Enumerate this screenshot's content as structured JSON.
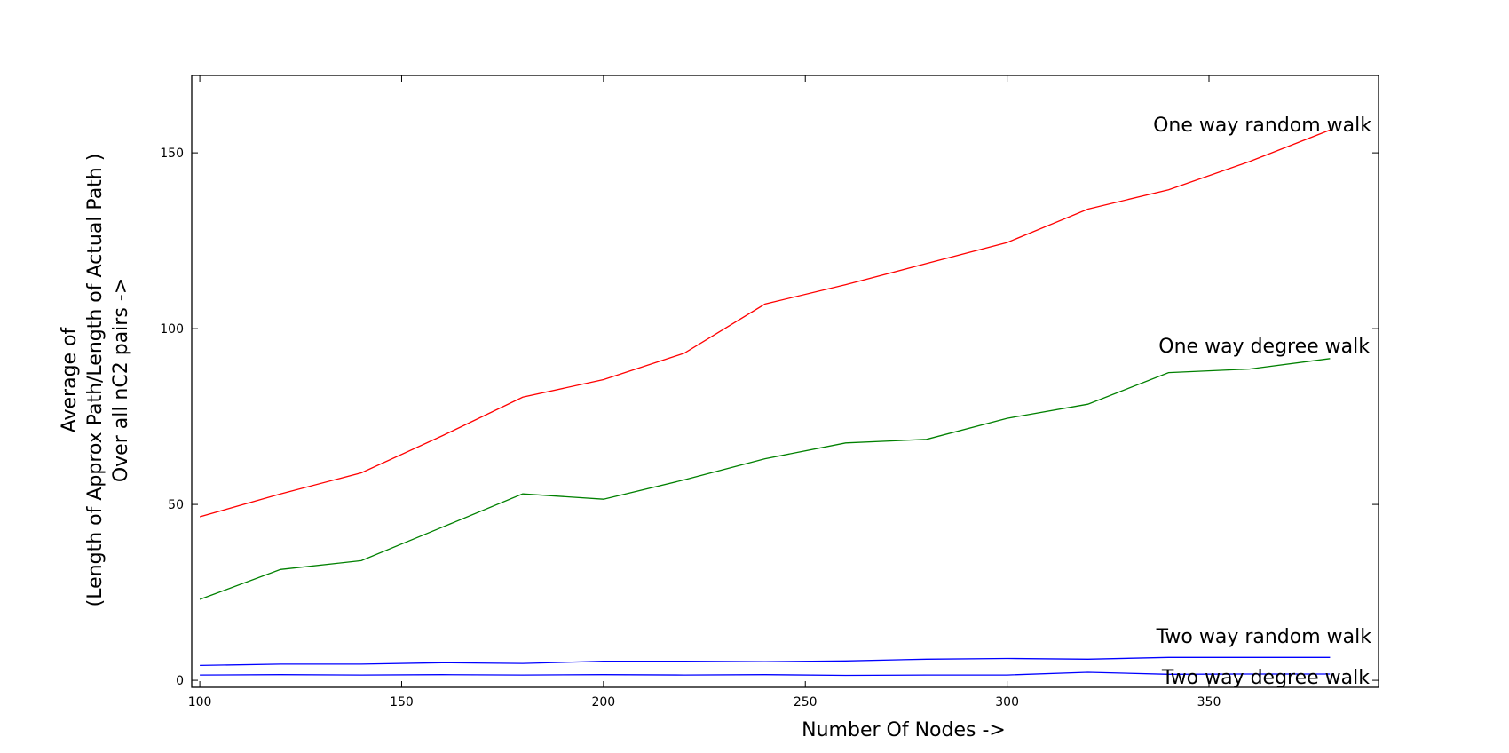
{
  "chart_data": {
    "type": "line",
    "title": "",
    "xlabel": "Number Of Nodes ->",
    "ylabel_lines": [
      "Average of",
      "(Length of Approx Path/Length of Actual Path )",
      "Over all nC2 pairs ->"
    ],
    "xlim": [
      98,
      392
    ],
    "ylim": [
      -2,
      172
    ],
    "xticks": [
      100,
      150,
      200,
      250,
      300,
      350
    ],
    "yticks": [
      0,
      50,
      100,
      150
    ],
    "grid": false,
    "x": [
      100,
      120,
      140,
      160,
      180,
      200,
      220,
      240,
      260,
      280,
      300,
      320,
      340,
      360,
      380
    ],
    "series": [
      {
        "name": "One way random walk",
        "color": "#ff0000",
        "values": [
          46.5,
          53,
          59,
          69.5,
          80.5,
          85.5,
          93,
          107,
          112.5,
          118.5,
          124.5,
          134,
          139.5,
          147.5,
          156.5
        ]
      },
      {
        "name": "One way degree walk",
        "color": "#008000",
        "values": [
          23,
          31.5,
          34,
          43.5,
          53,
          51.5,
          57,
          63,
          67.5,
          68.5,
          74.5,
          78.5,
          87.5,
          88.5,
          91.5
        ]
      },
      {
        "name": "Two way random walk",
        "color": "#0000ff",
        "values": [
          4.2,
          4.6,
          4.6,
          5.0,
          4.8,
          5.4,
          5.4,
          5.3,
          5.5,
          6.0,
          6.2,
          6.0,
          6.5,
          6.5,
          6.5
        ]
      },
      {
        "name": "Two way degree walk",
        "color": "#0000ff",
        "values": [
          1.5,
          1.6,
          1.5,
          1.6,
          1.5,
          1.6,
          1.5,
          1.6,
          1.4,
          1.5,
          1.5,
          2.3,
          1.7,
          1.8,
          1.8
        ]
      }
    ]
  }
}
